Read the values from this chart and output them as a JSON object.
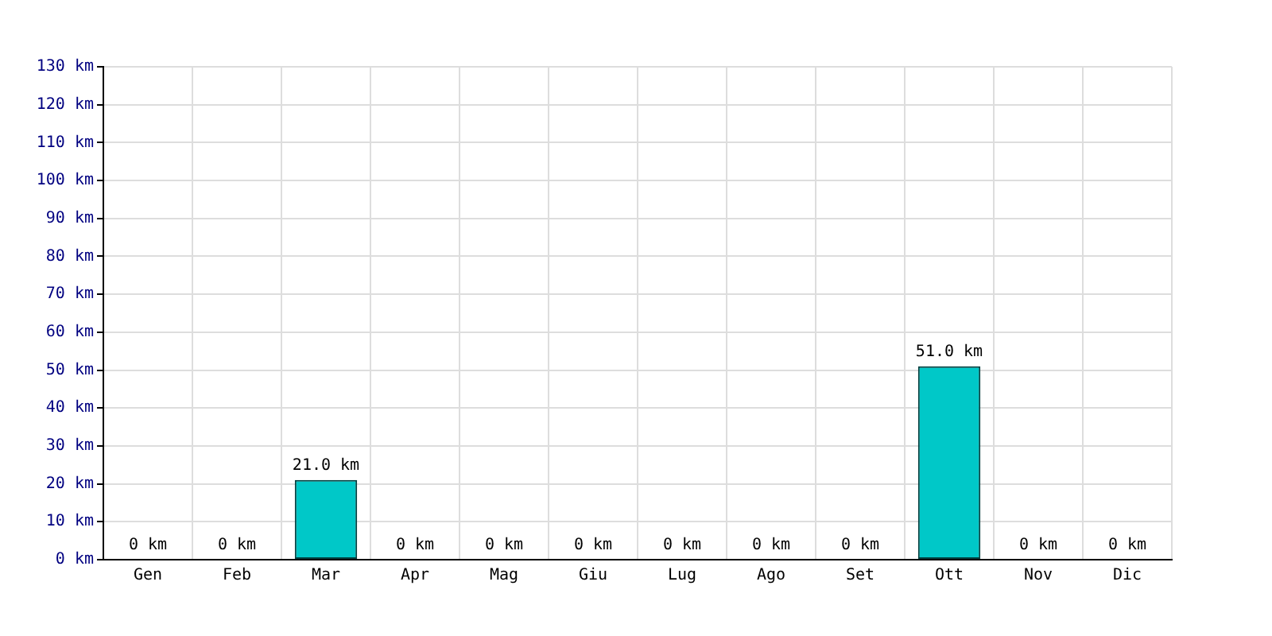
{
  "chart_data": {
    "type": "bar",
    "categories": [
      "Gen",
      "Feb",
      "Mar",
      "Apr",
      "Mag",
      "Giu",
      "Lug",
      "Ago",
      "Set",
      "Ott",
      "Nov",
      "Dic"
    ],
    "values": [
      0,
      0,
      21,
      0,
      0,
      0,
      0,
      0,
      0,
      51,
      0,
      0
    ],
    "value_labels": [
      "0 km",
      "0 km",
      "21.0 km",
      "0 km",
      "0 km",
      "0 km",
      "0 km",
      "0 km",
      "0 km",
      "51.0 km",
      "0 km",
      "0 km"
    ],
    "color": "#00c8c8",
    "ylim": [
      0,
      130
    ],
    "yticks": [
      {
        "value": 0,
        "label": "0 km"
      },
      {
        "value": 10,
        "label": "10 km"
      },
      {
        "value": 20,
        "label": "20 km"
      },
      {
        "value": 30,
        "label": "30 km"
      },
      {
        "value": 40,
        "label": "40 km"
      },
      {
        "value": 50,
        "label": "50 km"
      },
      {
        "value": 60,
        "label": "60 km"
      },
      {
        "value": 70,
        "label": "70 km"
      },
      {
        "value": 80,
        "label": "80 km"
      },
      {
        "value": 90,
        "label": "90 km"
      },
      {
        "value": 100,
        "label": "100 km"
      },
      {
        "value": 110,
        "label": "110 km"
      },
      {
        "value": 120,
        "label": "120 km"
      },
      {
        "value": 130,
        "label": "130 km"
      }
    ],
    "grid": true,
    "legend": false
  }
}
